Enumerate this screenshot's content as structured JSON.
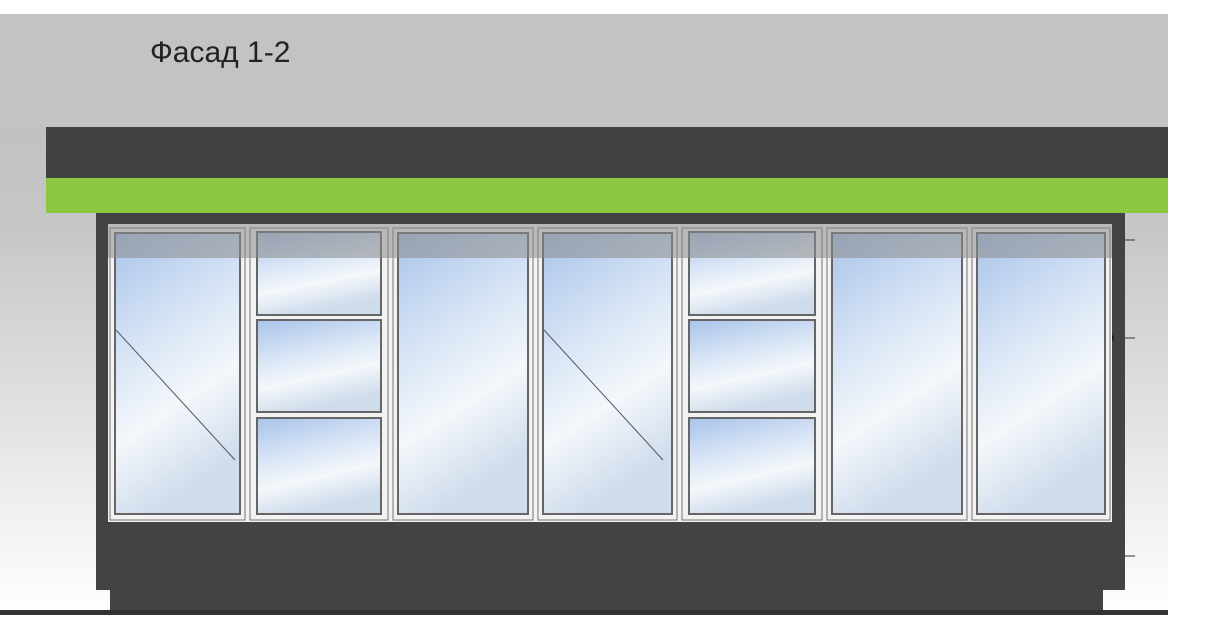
{
  "title": "Фасад 1-2"
}
